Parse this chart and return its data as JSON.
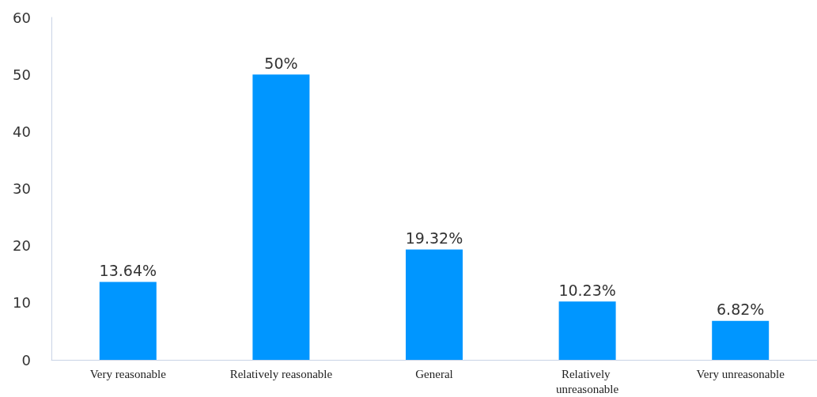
{
  "chart_data": {
    "type": "bar",
    "categories": [
      "Very reasonable",
      "Relatively reasonable",
      "General",
      "Relatively unreasonable",
      "Very unreasonable"
    ],
    "values": [
      13.64,
      50,
      19.32,
      10.23,
      6.82
    ],
    "value_labels": [
      "13.64%",
      "50%",
      "19.32%",
      "10.23%",
      "6.82%"
    ],
    "color": "#0096ff",
    "ylim": [
      0,
      60
    ],
    "yticks": [
      0,
      10,
      20,
      30,
      40,
      50,
      60
    ],
    "grid": false
  }
}
